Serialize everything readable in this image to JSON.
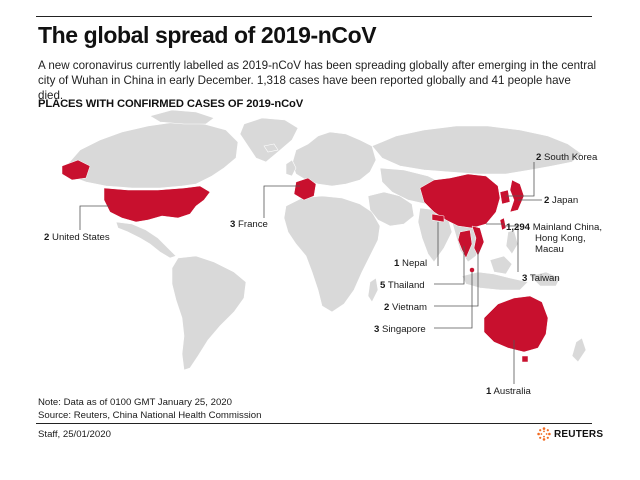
{
  "header": {
    "title": "The global spread of 2019-nCoV",
    "intro_line1": "A new coronavirus currently labelled as 2019-nCoV has been spreading globally after emerging in the central",
    "intro_line2": "city of Wuhan in China in early December. 1,318 cases have been reported globally and 41 people have died.",
    "subhead": "PLACES WITH CONFIRMED CASES OF 2019-nCoV"
  },
  "colors": {
    "land": "#d9d9d9",
    "affected": "#c8102e",
    "leader": "#555555"
  },
  "places": [
    {
      "id": "united-states",
      "count": "2",
      "name": "United States"
    },
    {
      "id": "france",
      "count": "3",
      "name": "France"
    },
    {
      "id": "south-korea",
      "count": "2",
      "name": "South Korea"
    },
    {
      "id": "japan",
      "count": "2",
      "name": "Japan"
    },
    {
      "id": "china",
      "count": "1,294",
      "name": "Mainland China,",
      "name2": "Hong Kong,",
      "name3": "Macau"
    },
    {
      "id": "nepal",
      "count": "1",
      "name": "Nepal"
    },
    {
      "id": "taiwan",
      "count": "3",
      "name": "Taiwan"
    },
    {
      "id": "thailand",
      "count": "5",
      "name": "Thailand"
    },
    {
      "id": "vietnam",
      "count": "2",
      "name": "Vietnam"
    },
    {
      "id": "singapore",
      "count": "3",
      "name": "Singapore"
    },
    {
      "id": "australia",
      "count": "1",
      "name": "Australia"
    }
  ],
  "footer": {
    "note": "Note: Data as of 0100 GMT January 25, 2020",
    "source": "Source: Reuters, China National Health Commission",
    "credit": "Staff,  25/01/2020",
    "brand": "REUTERS"
  }
}
